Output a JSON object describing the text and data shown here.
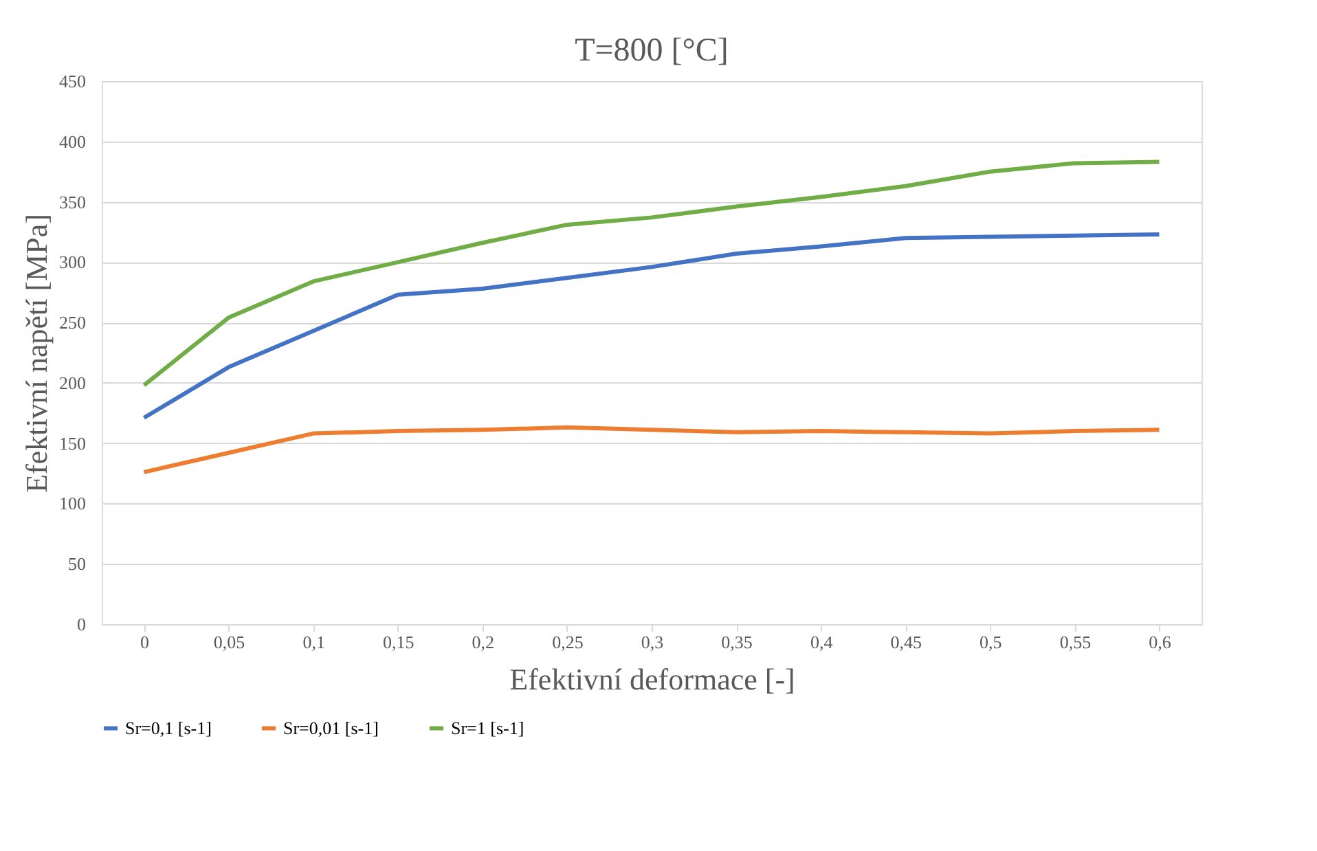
{
  "chart_data": {
    "type": "line",
    "title": "T=800 [°C]",
    "xlabel": "Efektivní deformace [-]",
    "ylabel": "Efektivní napětí [MPa]",
    "categories": [
      "0",
      "0,05",
      "0,1",
      "0,15",
      "0,2",
      "0,25",
      "0,3",
      "0,35",
      "0,4",
      "0,45",
      "0,5",
      "0,55",
      "0,6"
    ],
    "series": [
      {
        "name": "Sr=0,1 [s-1]",
        "color": "#4472c4",
        "values": [
          171,
          213,
          243,
          273,
          278,
          287,
          296,
          307,
          313,
          320,
          321,
          322,
          323
        ]
      },
      {
        "name": "Sr=0,01 [s-1]",
        "color": "#ed7d31",
        "values": [
          126,
          142,
          158,
          160,
          161,
          163,
          161,
          159,
          160,
          159,
          158,
          160,
          161
        ]
      },
      {
        "name": "Sr=1 [s-1]",
        "color": "#70ad47",
        "values": [
          198,
          254,
          284,
          300,
          316,
          331,
          337,
          346,
          354,
          363,
          375,
          382,
          383
        ]
      }
    ],
    "ylim": [
      0,
      450
    ],
    "yticks": [
      0,
      50,
      100,
      150,
      200,
      250,
      300,
      350,
      400,
      450
    ],
    "grid": "y",
    "legend": "bottom",
    "marker": "none",
    "line_style": "solid"
  }
}
